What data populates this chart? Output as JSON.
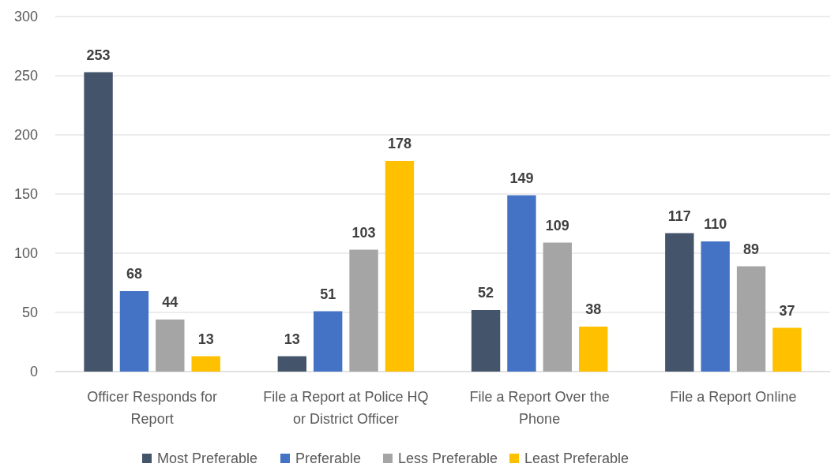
{
  "chart_data": {
    "type": "bar",
    "categories": [
      "Officer Responds for Report",
      "File a Report at Police HQ or District Officer",
      "File a Report Over the Phone",
      "File a Report Online"
    ],
    "series": [
      {
        "name": "Most Preferable",
        "color": "#44546a",
        "values": [
          253,
          13,
          52,
          117
        ]
      },
      {
        "name": "Preferable",
        "color": "#4472c4",
        "values": [
          68,
          51,
          149,
          110
        ]
      },
      {
        "name": "Less Preferable",
        "color": "#a5a5a5",
        "values": [
          44,
          103,
          109,
          89
        ]
      },
      {
        "name": "Least Preferable",
        "color": "#ffc000",
        "values": [
          13,
          178,
          38,
          37
        ]
      }
    ],
    "ylim": [
      0,
      300
    ],
    "yticks": [
      0,
      50,
      100,
      150,
      200,
      250,
      300
    ],
    "grid": "y",
    "legend": "bottom",
    "data_labels": true
  }
}
